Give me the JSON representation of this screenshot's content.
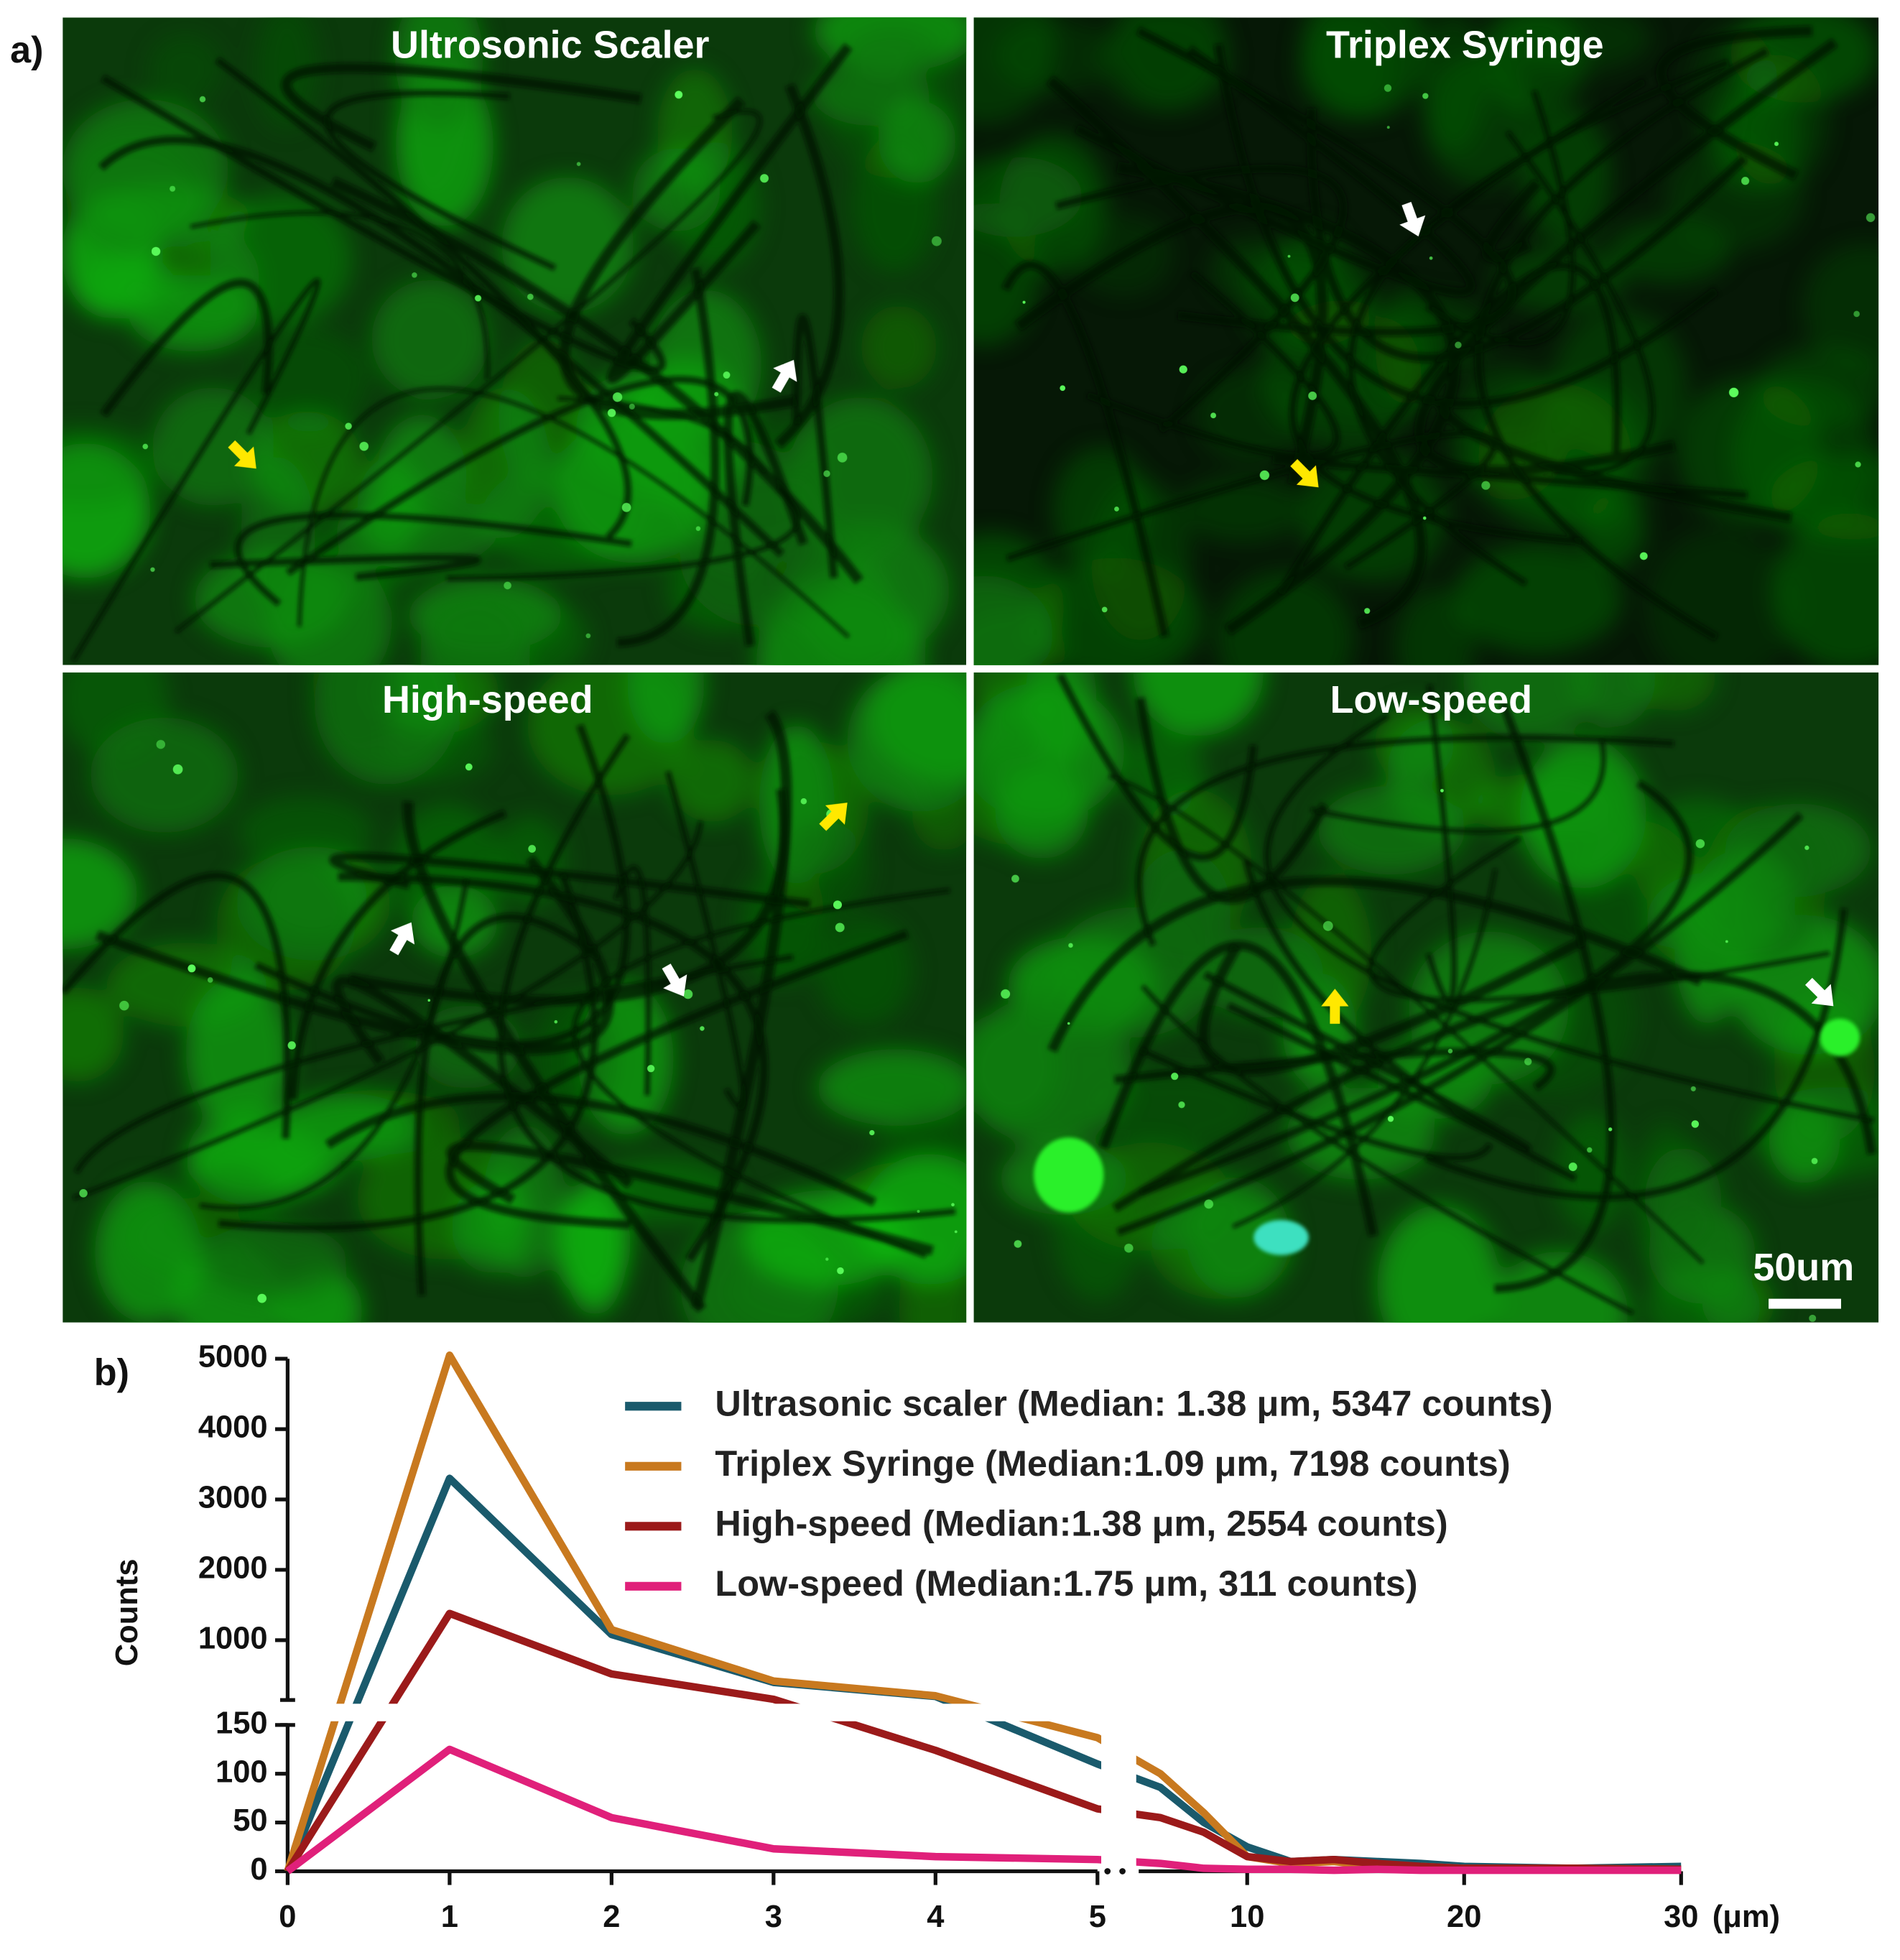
{
  "figure": {
    "panel_a_label": "a)",
    "panel_b_label": "b)",
    "images": [
      {
        "title": "Ultrosonic Scaler"
      },
      {
        "title": "Triplex Syringe"
      },
      {
        "title": "High-speed"
      },
      {
        "title": "Low-speed"
      }
    ],
    "scale_bar": "50um"
  },
  "chart_data": {
    "type": "line",
    "y_label": "Counts",
    "x_unit_label": "(μm)",
    "x": [
      0,
      1,
      2,
      3,
      4,
      5,
      6,
      8,
      10,
      12,
      14,
      16,
      18,
      20,
      25,
      30
    ],
    "x_segments": [
      {
        "xlim": [
          0,
          5
        ],
        "xticks": [
          0,
          1,
          2,
          3,
          4,
          5
        ]
      },
      {
        "xlim": [
          5,
          30
        ],
        "xticks": [
          10,
          20,
          30
        ]
      }
    ],
    "y_segments": [
      {
        "ylim": [
          0,
          150
        ],
        "yticks": [
          0,
          50,
          100,
          150
        ]
      },
      {
        "ylim": [
          150,
          5000
        ],
        "yticks": [
          1000,
          2000,
          3000,
          4000,
          5000
        ]
      }
    ],
    "series": [
      {
        "name": "Ultrasonic scaler (Median: 1.38 μm, 5347 counts)",
        "color": "#1a5a6c",
        "values": [
          0,
          3300,
          1080,
          400,
          200,
          110,
          86,
          50,
          25,
          10,
          12,
          10,
          8,
          5,
          3,
          5
        ]
      },
      {
        "name": "Triplex Syringe (Median:1.09 μm, 7198 counts)",
        "color": "#c8791f",
        "values": [
          0,
          5050,
          1150,
          420,
          210,
          137,
          100,
          60,
          15,
          8,
          10,
          5,
          5,
          3,
          3,
          2
        ]
      },
      {
        "name": "High-speed (Median:1.38 μm, 2554 counts)",
        "color": "#9b1a1a",
        "values": [
          0,
          1380,
          520,
          160,
          124,
          64,
          55,
          40,
          15,
          10,
          12,
          8,
          5,
          3,
          3,
          2
        ]
      },
      {
        "name": "Low-speed (Median:1.75 μm, 311 counts)",
        "color": "#e0207a",
        "values": [
          0,
          125,
          55,
          23,
          15,
          12,
          8,
          3,
          2,
          2,
          1,
          2,
          1,
          1,
          1,
          1
        ]
      }
    ]
  }
}
